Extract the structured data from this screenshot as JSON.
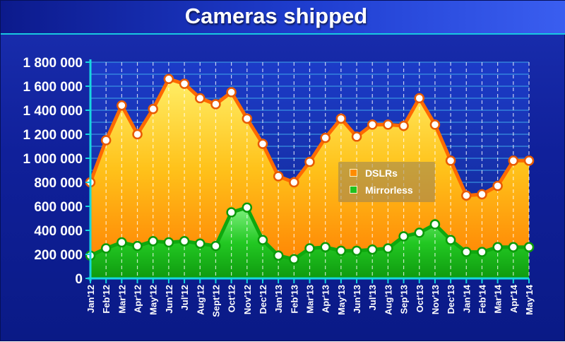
{
  "chart_data": {
    "type": "area",
    "title": "Cameras shipped",
    "xlabel": "",
    "ylabel": "",
    "categories": [
      "Jan'12",
      "Feb'12",
      "Mar'12",
      "Apr'12",
      "May'12",
      "Jun'12",
      "Jul'12",
      "Aug'12",
      "Sept'12",
      "Oct'12",
      "Nov'12",
      "Dec'12",
      "Jan'13",
      "Feb'13",
      "Mar'13",
      "Apr'13",
      "May'13",
      "Jun'13",
      "Jul'13",
      "Aug'13",
      "Sep'13",
      "Oct'13",
      "Nov'13",
      "Dec'13",
      "Jan'14",
      "Feb'14",
      "Mar'14",
      "Apr'14",
      "May'14"
    ],
    "ylim": [
      0,
      1800000
    ],
    "y_ticks": [
      0,
      200000,
      400000,
      600000,
      800000,
      1000000,
      1200000,
      1400000,
      1600000,
      1800000
    ],
    "y_tick_labels": [
      "0",
      "200 000",
      "400 000",
      "600 000",
      "800 000",
      "1 000 000",
      "1 200 000",
      "1 400 000",
      "1 600 000",
      "1 800 000"
    ],
    "grid": true,
    "legend_position": "center-right",
    "series": [
      {
        "name": "DSLRs",
        "color": "#ff8c00",
        "values": [
          800000,
          1150000,
          1440000,
          1200000,
          1410000,
          1660000,
          1620000,
          1500000,
          1450000,
          1550000,
          1330000,
          1120000,
          850000,
          800000,
          970000,
          1170000,
          1330000,
          1180000,
          1280000,
          1280000,
          1270000,
          1500000,
          1280000,
          980000,
          690000,
          700000,
          770000,
          980000,
          980000
        ]
      },
      {
        "name": "Mirrorless",
        "color": "#1fc21f",
        "values": [
          190000,
          250000,
          300000,
          270000,
          310000,
          300000,
          310000,
          290000,
          270000,
          550000,
          590000,
          320000,
          190000,
          160000,
          250000,
          260000,
          230000,
          230000,
          240000,
          250000,
          350000,
          380000,
          450000,
          320000,
          220000,
          220000,
          260000,
          260000,
          260000
        ]
      }
    ]
  }
}
